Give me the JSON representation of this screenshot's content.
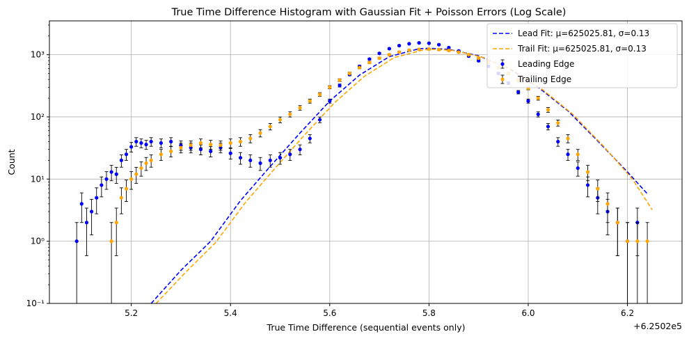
{
  "chart_data": {
    "type": "scatter",
    "title": "True Time Difference Histogram with Gaussian Fit + Poisson Errors (Log Scale)",
    "xlabel": "True Time Difference (sequential events only)",
    "ylabel": "Count",
    "offset_label": "+6.2502e5",
    "x_ticks": [
      5.2,
      5.4,
      5.6,
      5.8,
      6.0,
      6.2
    ],
    "x_tick_labels": [
      "5.2",
      "5.4",
      "5.6",
      "5.8",
      "6.0",
      "6.2"
    ],
    "y_scale": "log",
    "y_ticks": [
      0.1,
      1,
      10,
      100,
      1000
    ],
    "y_tick_labels": [
      "10⁻¹",
      "10⁰",
      "10¹",
      "10²",
      "10³"
    ],
    "xlim": [
      5.035,
      6.31
    ],
    "ylim": [
      0.1,
      3500
    ],
    "grid": true,
    "legend_position": "top-right",
    "series": [
      {
        "name": "Lead Fit: μ=625025.81, σ=0.13",
        "kind": "line",
        "style": "dashed",
        "color": "#0000ff",
        "x": [
          5.24,
          5.3,
          5.36,
          5.42,
          5.48,
          5.54,
          5.6,
          5.66,
          5.72,
          5.78,
          5.8,
          5.84,
          5.9,
          5.96,
          6.02,
          6.08,
          6.14,
          6.2,
          6.24
        ],
        "values": [
          0.1,
          0.34,
          1.0,
          4.5,
          16,
          55,
          180,
          470,
          930,
          1250,
          1270,
          1220,
          960,
          610,
          300,
          125,
          41,
          13,
          5.8
        ]
      },
      {
        "name": "Trail Fit: μ=625025.81, σ=0.13",
        "kind": "line",
        "style": "dashed",
        "color": "#ffa500",
        "x": [
          5.25,
          5.31,
          5.37,
          5.43,
          5.49,
          5.55,
          5.61,
          5.67,
          5.73,
          5.79,
          5.81,
          5.85,
          5.91,
          5.97,
          6.03,
          6.09,
          6.15,
          6.21,
          6.25
        ],
        "values": [
          0.1,
          0.32,
          0.95,
          4.2,
          15,
          52,
          170,
          450,
          900,
          1200,
          1220,
          1170,
          900,
          560,
          270,
          110,
          35,
          10,
          3.2
        ]
      },
      {
        "name": "Leading Edge",
        "kind": "errorbar",
        "marker": "dot",
        "color": "#0000ff",
        "x": [
          5.09,
          5.1,
          5.11,
          5.12,
          5.13,
          5.14,
          5.15,
          5.16,
          5.17,
          5.18,
          5.19,
          5.2,
          5.21,
          5.22,
          5.23,
          5.24,
          5.26,
          5.28,
          5.3,
          5.32,
          5.34,
          5.36,
          5.38,
          5.4,
          5.42,
          5.44,
          5.46,
          5.48,
          5.5,
          5.52,
          5.54,
          5.56,
          5.58,
          5.6,
          5.62,
          5.64,
          5.66,
          5.68,
          5.7,
          5.72,
          5.74,
          5.76,
          5.78,
          5.8,
          5.82,
          5.84,
          5.86,
          5.88,
          5.9,
          5.92,
          5.94,
          5.96,
          5.98,
          6.0,
          6.02,
          6.04,
          6.06,
          6.08,
          6.1,
          6.12,
          6.14,
          6.16,
          6.18,
          6.2,
          6.22
        ],
        "values": [
          1,
          4,
          2,
          3,
          5,
          8,
          10,
          13,
          12,
          20,
          25,
          33,
          40,
          38,
          36,
          40,
          38,
          40,
          35,
          32,
          30,
          28,
          32,
          26,
          22,
          20,
          18,
          20,
          22,
          25,
          30,
          45,
          90,
          180,
          320,
          480,
          650,
          850,
          1050,
          1250,
          1400,
          1500,
          1550,
          1530,
          1450,
          1300,
          1150,
          950,
          800,
          650,
          500,
          350,
          250,
          180,
          110,
          70,
          40,
          25,
          15,
          8,
          5,
          3,
          2,
          1,
          2
        ]
      },
      {
        "name": "Trailing Edge",
        "kind": "errorbar",
        "marker": "dot",
        "color": "#ffa500",
        "x": [
          5.16,
          5.17,
          5.18,
          5.19,
          5.2,
          5.21,
          5.22,
          5.23,
          5.24,
          5.26,
          5.28,
          5.3,
          5.32,
          5.34,
          5.36,
          5.38,
          5.4,
          5.42,
          5.44,
          5.46,
          5.48,
          5.5,
          5.52,
          5.54,
          5.56,
          5.58,
          5.6,
          5.62,
          5.64,
          5.66,
          5.68,
          5.7,
          5.72,
          5.74,
          5.76,
          5.78,
          5.8,
          5.82,
          5.84,
          5.86,
          5.88,
          5.9,
          5.92,
          5.94,
          5.96,
          5.98,
          6.0,
          6.02,
          6.04,
          6.06,
          6.08,
          6.1,
          6.12,
          6.14,
          6.16,
          6.18,
          6.2,
          6.22,
          6.24
        ],
        "values": [
          1,
          2,
          5,
          7,
          10,
          12,
          15,
          18,
          20,
          25,
          28,
          32,
          35,
          38,
          36,
          35,
          38,
          40,
          45,
          55,
          70,
          90,
          110,
          140,
          180,
          230,
          300,
          390,
          500,
          620,
          750,
          880,
          1000,
          1100,
          1180,
          1220,
          1230,
          1210,
          1170,
          1100,
          1000,
          880,
          750,
          620,
          500,
          390,
          290,
          200,
          130,
          80,
          45,
          25,
          13,
          7,
          4,
          2,
          1,
          1,
          1
        ]
      }
    ]
  }
}
